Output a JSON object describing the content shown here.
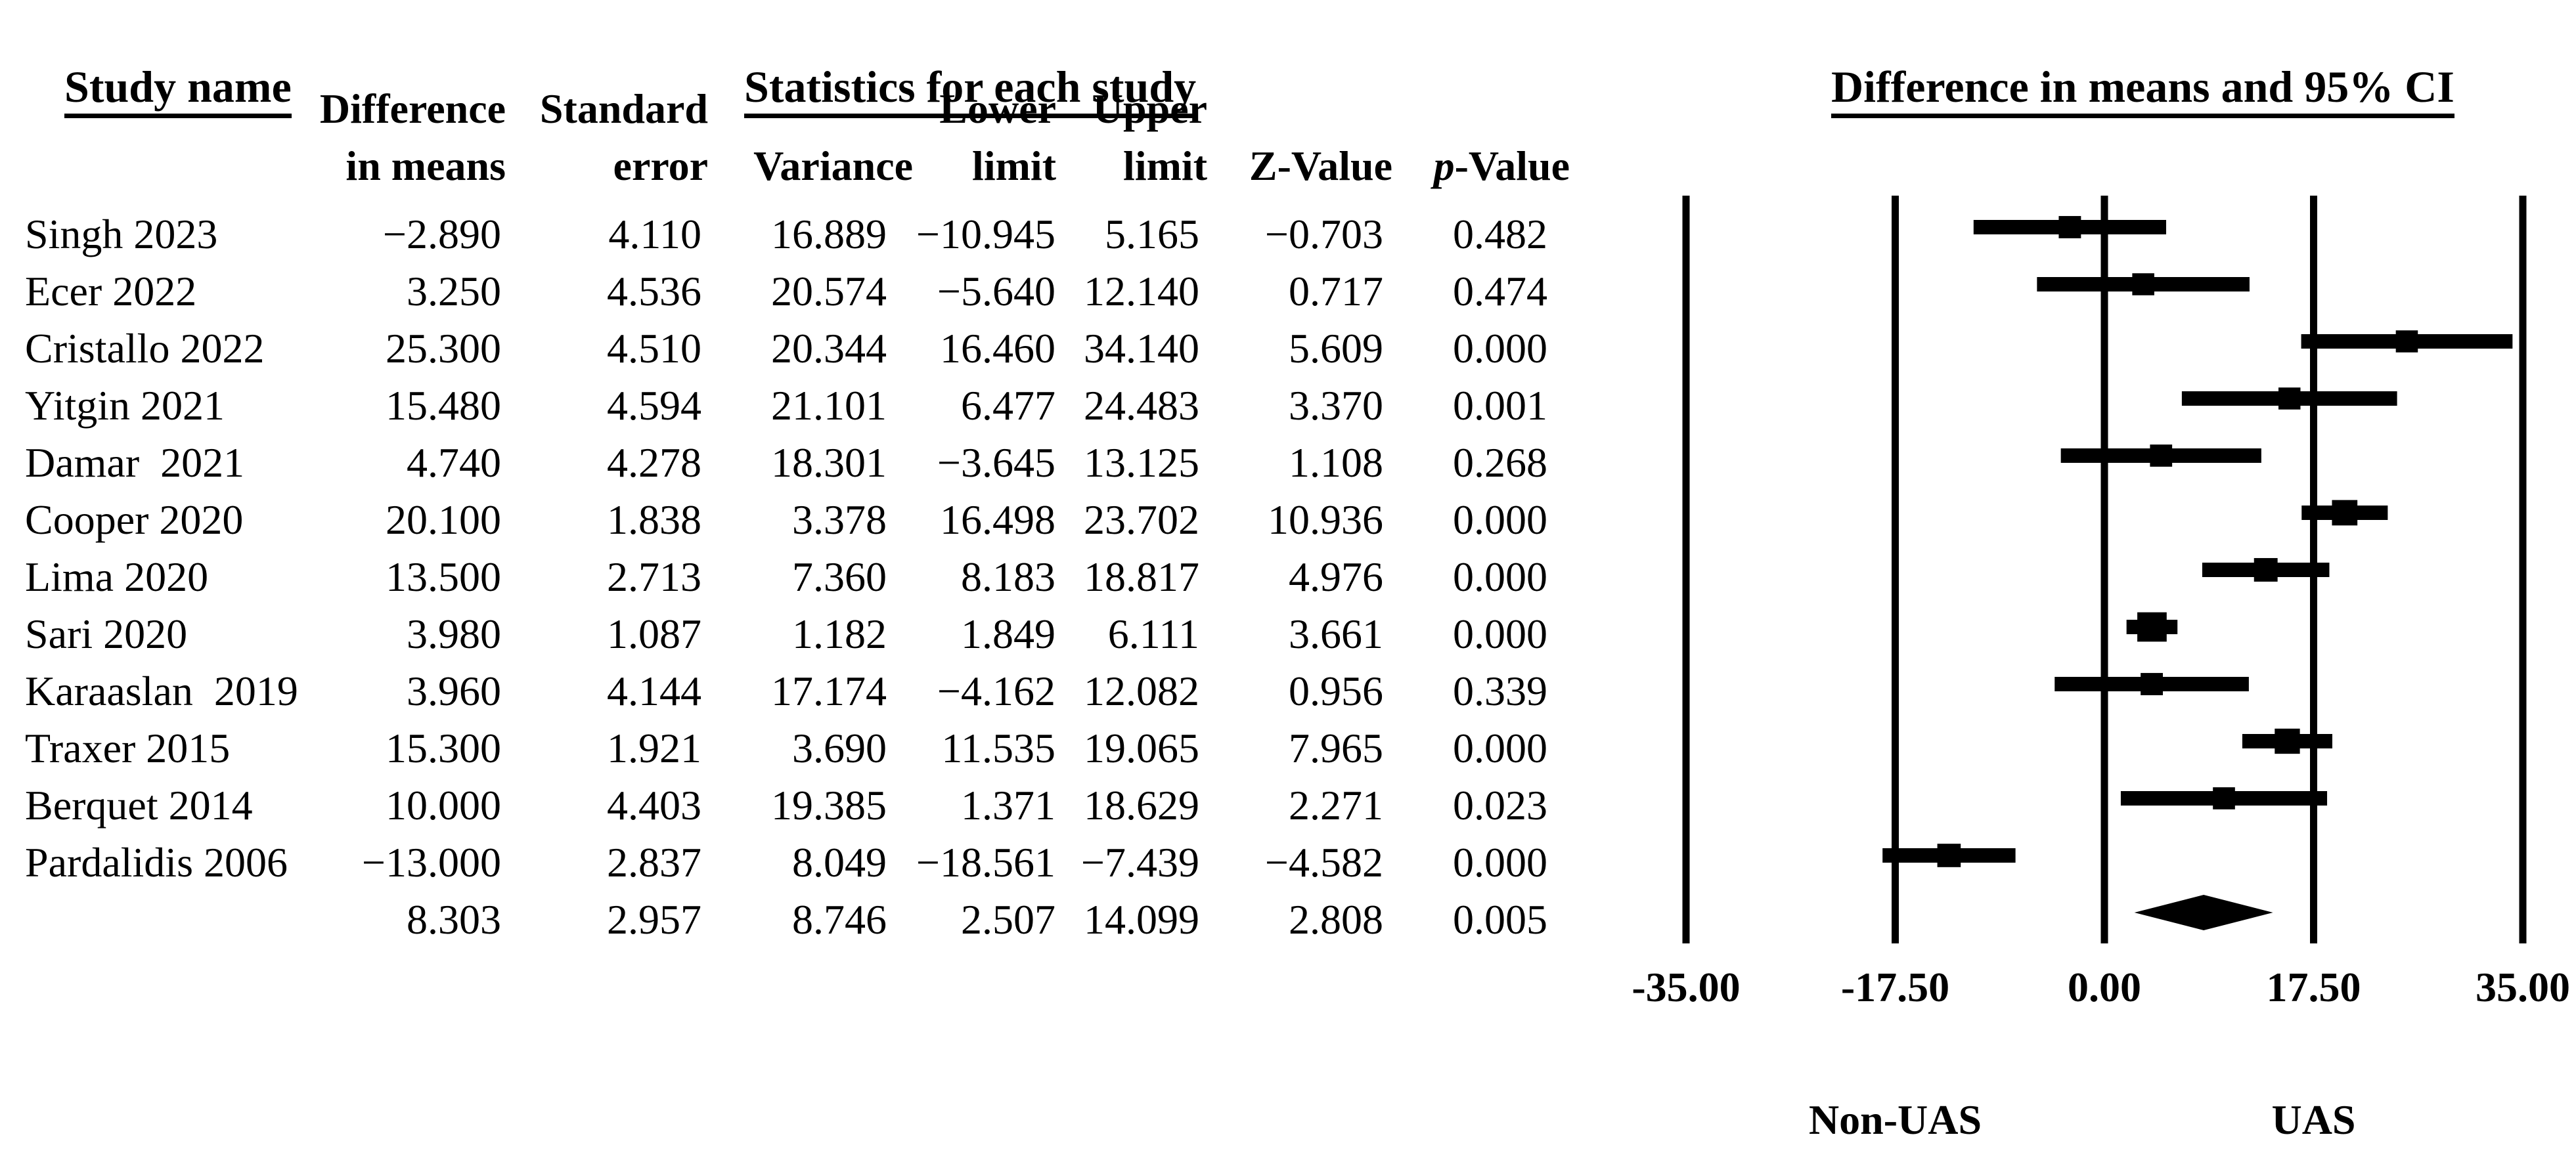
{
  "title_row": {
    "study_name": "Study name",
    "stats_title": "Statistics for each study",
    "ci_title": "Difference in means and 95% CI"
  },
  "columns": [
    {
      "line1": "Difference",
      "line2": "in means",
      "italic_first": false
    },
    {
      "line1": "Standard",
      "line2": "error",
      "italic_first": false
    },
    {
      "line1": "",
      "line2": "Variance",
      "italic_first": false
    },
    {
      "line1": "Lower",
      "line2": "limit",
      "italic_first": false
    },
    {
      "line1": "Upper",
      "line2": "limit",
      "italic_first": false
    },
    {
      "line1": "",
      "line2": "Z-Value",
      "italic_first": false
    },
    {
      "line1": "",
      "line2": "p-Value",
      "italic_first": true
    }
  ],
  "chart_data": {
    "type": "forest",
    "title": "Difference in means and 95% CI",
    "xlim": [
      -35,
      35
    ],
    "ticks": [
      {
        "value": -35,
        "label": "-35.00"
      },
      {
        "value": -17.5,
        "label": "-17.50"
      },
      {
        "value": 0,
        "label": "0.00"
      },
      {
        "value": 17.5,
        "label": "17.50"
      },
      {
        "value": 35,
        "label": "35.00"
      }
    ],
    "group_labels": {
      "left": "Non-UAS",
      "right": "UAS"
    },
    "marker_color": "#000000",
    "studies": [
      {
        "name": "Singh 2023",
        "diff": -2.89,
        "se": 4.11,
        "variance": 16.889,
        "lower": -10.945,
        "upper": 5.165,
        "z": -0.703,
        "p": 0.482
      },
      {
        "name": "Ecer 2022",
        "diff": 3.25,
        "se": 4.536,
        "variance": 20.574,
        "lower": -5.64,
        "upper": 12.14,
        "z": 0.717,
        "p": 0.474
      },
      {
        "name": "Cristallo 2022",
        "diff": 25.3,
        "se": 4.51,
        "variance": 20.344,
        "lower": 16.46,
        "upper": 34.14,
        "z": 5.609,
        "p": 0.0
      },
      {
        "name": "Yitgin 2021",
        "diff": 15.48,
        "se": 4.594,
        "variance": 21.101,
        "lower": 6.477,
        "upper": 24.483,
        "z": 3.37,
        "p": 0.001
      },
      {
        "name": "Damar  2021",
        "diff": 4.74,
        "se": 4.278,
        "variance": 18.301,
        "lower": -3.645,
        "upper": 13.125,
        "z": 1.108,
        "p": 0.268
      },
      {
        "name": "Cooper 2020",
        "diff": 20.1,
        "se": 1.838,
        "variance": 3.378,
        "lower": 16.498,
        "upper": 23.702,
        "z": 10.936,
        "p": 0.0
      },
      {
        "name": "Lima 2020",
        "diff": 13.5,
        "se": 2.713,
        "variance": 7.36,
        "lower": 8.183,
        "upper": 18.817,
        "z": 4.976,
        "p": 0.0
      },
      {
        "name": "Sari 2020",
        "diff": 3.98,
        "se": 1.087,
        "variance": 1.182,
        "lower": 1.849,
        "upper": 6.111,
        "z": 3.661,
        "p": 0.0
      },
      {
        "name": "Karaaslan  2019",
        "diff": 3.96,
        "se": 4.144,
        "variance": 17.174,
        "lower": -4.162,
        "upper": 12.082,
        "z": 0.956,
        "p": 0.339
      },
      {
        "name": "Traxer 2015",
        "diff": 15.3,
        "se": 1.921,
        "variance": 3.69,
        "lower": 11.535,
        "upper": 19.065,
        "z": 7.965,
        "p": 0.0
      },
      {
        "name": "Berquet 2014",
        "diff": 10.0,
        "se": 4.403,
        "variance": 19.385,
        "lower": 1.371,
        "upper": 18.629,
        "z": 2.271,
        "p": 0.023
      },
      {
        "name": "Pardalidis 2006",
        "diff": -13.0,
        "se": 2.837,
        "variance": 8.049,
        "lower": -18.561,
        "upper": -7.439,
        "z": -4.582,
        "p": 0.0
      }
    ],
    "summary": {
      "name": "",
      "diff": 8.303,
      "se": 2.957,
      "variance": 8.746,
      "lower": 2.507,
      "upper": 14.099,
      "z": 2.808,
      "p": 0.005
    }
  }
}
